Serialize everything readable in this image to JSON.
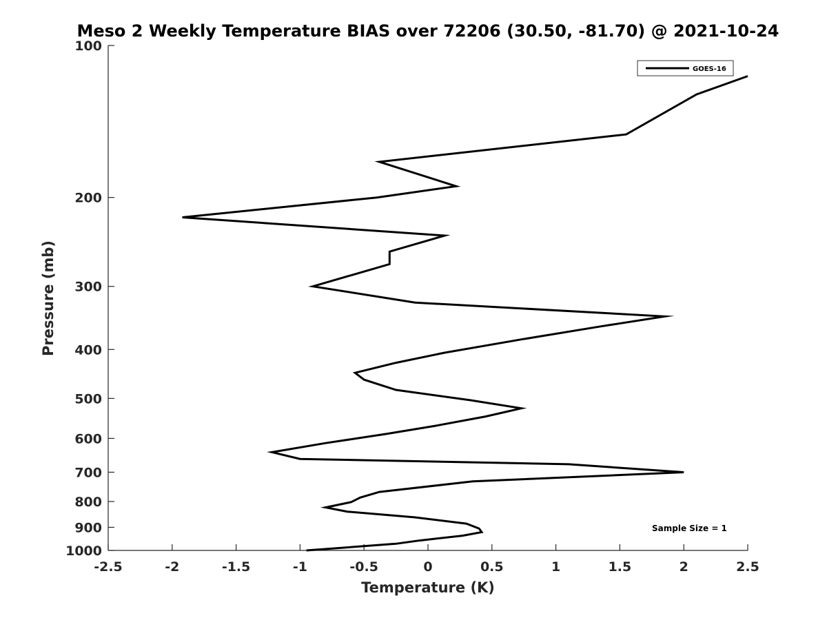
{
  "chart_data": {
    "type": "line",
    "title": "Meso 2 Weekly Temperature BIAS over 72206 (30.50, -81.70) @ 2021-10-24",
    "xlabel": "Temperature (K)",
    "ylabel": "Pressure (mb)",
    "xlim": [
      -2.5,
      2.5
    ],
    "ylim": [
      100,
      1000
    ],
    "y_scale": "log",
    "y_reversed": true,
    "grid": false,
    "x_ticks": [
      -2.5,
      -2,
      -1.5,
      -1,
      -0.5,
      0,
      0.5,
      1,
      1.5,
      2,
      2.5
    ],
    "x_tick_labels": [
      "-2.5",
      "-2",
      "-1.5",
      "-1",
      "-0.5",
      "0",
      "0.5",
      "1",
      "1.5",
      "2",
      "2.5"
    ],
    "y_ticks": [
      100,
      200,
      300,
      400,
      500,
      600,
      700,
      800,
      900,
      1000
    ],
    "y_tick_labels": [
      "100",
      "200",
      "300",
      "400",
      "500",
      "600",
      "700",
      "800",
      "900",
      "1000"
    ],
    "legend": {
      "placement": "top-right",
      "entries": [
        "GOES-16"
      ]
    },
    "annotation": "Sample Size = 1",
    "series": [
      {
        "name": "GOES-16",
        "color": "#000000",
        "points": [
          {
            "x": 2.5,
            "y": 115
          },
          {
            "x": 2.1,
            "y": 125
          },
          {
            "x": 1.55,
            "y": 150
          },
          {
            "x": -0.38,
            "y": 170
          },
          {
            "x": 0.22,
            "y": 190
          },
          {
            "x": -0.4,
            "y": 200
          },
          {
            "x": -1.92,
            "y": 219
          },
          {
            "x": 0.13,
            "y": 238
          },
          {
            "x": -0.3,
            "y": 256
          },
          {
            "x": -0.3,
            "y": 271
          },
          {
            "x": -0.9,
            "y": 300
          },
          {
            "x": -0.1,
            "y": 323
          },
          {
            "x": 1.85,
            "y": 344
          },
          {
            "x": 1.35,
            "y": 360
          },
          {
            "x": 0.73,
            "y": 382
          },
          {
            "x": 0.13,
            "y": 406
          },
          {
            "x": -0.25,
            "y": 425
          },
          {
            "x": -0.57,
            "y": 445
          },
          {
            "x": -0.5,
            "y": 459
          },
          {
            "x": -0.25,
            "y": 481
          },
          {
            "x": 0.33,
            "y": 504
          },
          {
            "x": 0.73,
            "y": 523
          },
          {
            "x": 0.45,
            "y": 543
          },
          {
            "x": 0.05,
            "y": 567
          },
          {
            "x": -0.33,
            "y": 588
          },
          {
            "x": -0.8,
            "y": 613
          },
          {
            "x": -1.22,
            "y": 639
          },
          {
            "x": -1.0,
            "y": 659
          },
          {
            "x": 1.1,
            "y": 675
          },
          {
            "x": 2.0,
            "y": 700
          },
          {
            "x": 0.35,
            "y": 730
          },
          {
            "x": -0.38,
            "y": 766
          },
          {
            "x": -0.53,
            "y": 786
          },
          {
            "x": -0.6,
            "y": 802
          },
          {
            "x": -0.8,
            "y": 822
          },
          {
            "x": -0.63,
            "y": 838
          },
          {
            "x": -0.1,
            "y": 860
          },
          {
            "x": 0.3,
            "y": 885
          },
          {
            "x": 0.4,
            "y": 905
          },
          {
            "x": 0.42,
            "y": 920
          },
          {
            "x": 0.27,
            "y": 935
          },
          {
            "x": -0.07,
            "y": 956
          },
          {
            "x": -0.25,
            "y": 970
          },
          {
            "x": -0.95,
            "y": 1000
          }
        ]
      }
    ]
  }
}
